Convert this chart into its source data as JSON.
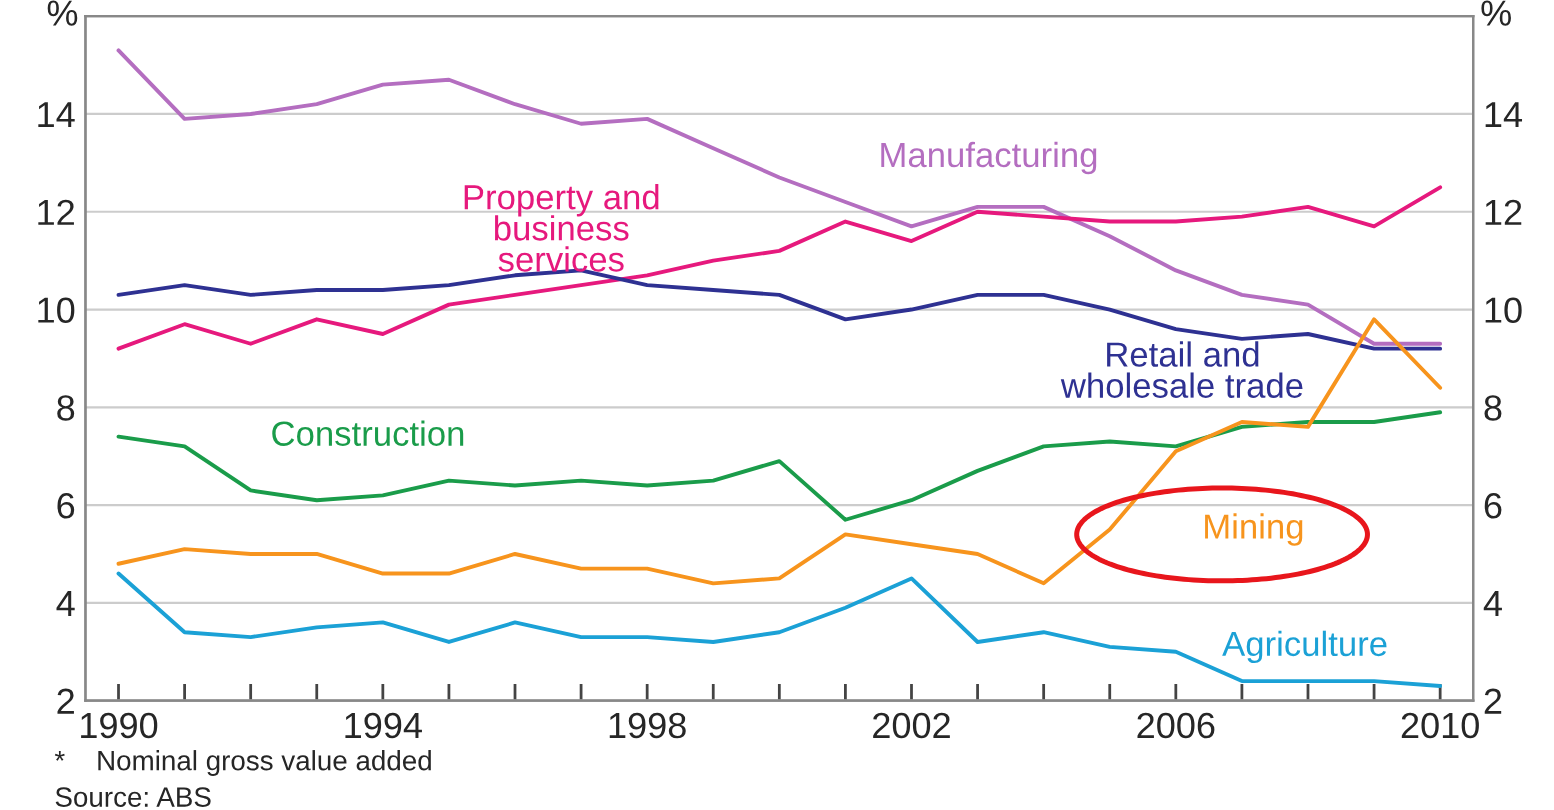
{
  "chart_data": {
    "type": "line",
    "ylabel": "%",
    "y2label": "%",
    "x": [
      1990,
      1991,
      1992,
      1993,
      1994,
      1995,
      1996,
      1997,
      1998,
      1999,
      2000,
      2001,
      2002,
      2003,
      2004,
      2005,
      2006,
      2007,
      2008,
      2009,
      2010
    ],
    "series": [
      {
        "name": "Manufacturing",
        "color": "#b46ec0",
        "values": [
          15.3,
          13.9,
          14.0,
          14.2,
          14.6,
          14.7,
          14.2,
          13.8,
          13.9,
          13.3,
          12.7,
          12.2,
          11.7,
          12.1,
          12.1,
          11.5,
          10.8,
          10.3,
          10.1,
          9.3,
          9.3
        ]
      },
      {
        "name": "Property and\nbusiness\nservices",
        "color": "#e6197d",
        "values": [
          9.2,
          9.7,
          9.3,
          9.8,
          9.5,
          10.1,
          10.3,
          10.5,
          10.7,
          11.0,
          11.2,
          11.8,
          11.4,
          12.0,
          11.9,
          11.8,
          11.8,
          11.9,
          12.1,
          11.7,
          12.5
        ]
      },
      {
        "name": "Retail and\nwholesale trade",
        "color": "#2e3192",
        "values": [
          10.3,
          10.5,
          10.3,
          10.4,
          10.4,
          10.5,
          10.7,
          10.8,
          10.5,
          10.4,
          10.3,
          9.8,
          10.0,
          10.3,
          10.3,
          10.0,
          9.6,
          9.4,
          9.5,
          9.2,
          9.2
        ]
      },
      {
        "name": "Construction",
        "color": "#1a9c4a",
        "values": [
          7.4,
          7.2,
          6.3,
          6.1,
          6.2,
          6.5,
          6.4,
          6.5,
          6.4,
          6.5,
          6.9,
          5.7,
          6.1,
          6.7,
          7.2,
          7.3,
          7.2,
          7.6,
          7.7,
          7.7,
          7.9
        ]
      },
      {
        "name": "Mining",
        "color": "#f7941d",
        "values": [
          4.8,
          5.1,
          5.0,
          5.0,
          4.6,
          4.6,
          5.0,
          4.7,
          4.7,
          4.4,
          4.5,
          5.4,
          5.2,
          5.0,
          4.4,
          5.5,
          7.1,
          7.7,
          7.6,
          9.8,
          8.4
        ]
      },
      {
        "name": "Agriculture",
        "color": "#1ba1d6",
        "values": [
          4.6,
          3.4,
          3.3,
          3.5,
          3.6,
          3.2,
          3.6,
          3.3,
          3.3,
          3.2,
          3.4,
          3.9,
          4.5,
          3.2,
          3.4,
          3.1,
          3.0,
          2.4,
          2.4,
          2.4,
          2.3
        ]
      }
    ],
    "xlim": [
      1989.5,
      2010.5
    ],
    "xticks": [
      1990,
      {
        "value": 1991,
        "label": null
      },
      {
        "value": 1992,
        "label": null
      },
      {
        "value": 1993,
        "label": null
      },
      1994,
      {
        "value": 1995,
        "label": null
      },
      {
        "value": 1996,
        "label": null
      },
      {
        "value": 1997,
        "label": null
      },
      1998,
      {
        "value": 1999,
        "label": null
      },
      {
        "value": 2000,
        "label": null
      },
      {
        "value": 2001,
        "label": null
      },
      2002,
      {
        "value": 2003,
        "label": null
      },
      {
        "value": 2004,
        "label": null
      },
      {
        "value": 2005,
        "label": null
      },
      2006,
      {
        "value": 2007,
        "label": null
      },
      {
        "value": 2008,
        "label": null
      },
      {
        "value": 2009,
        "label": null
      },
      2010
    ],
    "ylim": [
      2,
      16
    ],
    "yticks": [
      2,
      4,
      6,
      8,
      10,
      12,
      14
    ],
    "y2lim": [
      2,
      16
    ],
    "y2ticks": [
      2,
      4,
      6,
      8,
      10,
      12,
      14
    ],
    "grid": "y",
    "legend": false,
    "marker": "none",
    "line_style": "solid",
    "annotations": [
      "*    Nominal gross value added",
      "Source: ABS"
    ]
  }
}
